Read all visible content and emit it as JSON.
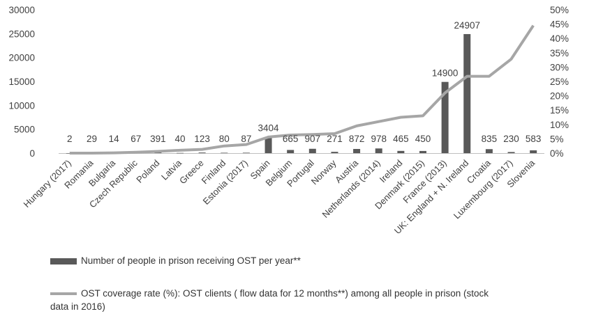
{
  "chart_data": {
    "type": "bar",
    "combo": "bar + line (dual axis)",
    "categories": [
      "Hungary (2017)",
      "Romania",
      "Bulgaria",
      "Czech Republic",
      "Poland",
      "Latvia",
      "Greece",
      "Finland",
      "Estonia (2017)",
      "Spain",
      "Belgium",
      "Portugal",
      "Norway",
      "Austria",
      "Netherlands (2014)",
      "Ireland",
      "Denmark (2015)",
      "France (2013)",
      "UK: England + N. Ireland",
      "Croatia",
      "Luxembourg (2017)",
      "Slovenia"
    ],
    "series": [
      {
        "name": "Number of people in prison receiving OST per year**",
        "kind": "bar",
        "axis": "left",
        "color": "#595959",
        "values": [
          2,
          29,
          14,
          67,
          391,
          40,
          123,
          80,
          87,
          3404,
          665,
          907,
          271,
          872,
          978,
          465,
          450,
          14900,
          24907,
          835,
          230,
          583
        ]
      },
      {
        "name": "OST coverage rate (%): OST clients ( flow data for 12 months**) among all people in prison (stock data in 2016)",
        "kind": "line",
        "axis": "right",
        "color": "#a6a6a6",
        "values": [
          0.0,
          0.0,
          0.1,
          0.3,
          0.6,
          1.0,
          1.3,
          2.5,
          3.0,
          5.6,
          6.3,
          6.5,
          6.8,
          9.5,
          11.0,
          12.5,
          13.0,
          21.0,
          26.8,
          26.8,
          32.8,
          44.5
        ]
      }
    ],
    "y_left": {
      "ylim": [
        0,
        30000
      ],
      "ticks": [
        "0",
        "5000",
        "10000",
        "15000",
        "20000",
        "25000",
        "30000"
      ]
    },
    "y_right": {
      "ylim": [
        0,
        50
      ],
      "ticks": [
        "0%",
        "5%",
        "10%",
        "15%",
        "20%",
        "25%",
        "30%",
        "35%",
        "40%",
        "45%",
        "50%"
      ]
    },
    "data_labels": [
      "2",
      "29",
      "14",
      "67",
      "391",
      "40",
      "123",
      "80",
      "87",
      "3404",
      "665",
      "907",
      "271",
      "872",
      "978",
      "465",
      "450",
      "14900",
      "24907",
      "835",
      "230",
      "583"
    ],
    "grid": false,
    "legend_position": "bottom"
  },
  "legend": {
    "bar_label": "Number of people in prison receiving OST per year**",
    "line_label_1": "OST coverage rate (%): OST clients ( flow data for 12 months**) among all people in prison (stock",
    "line_label_2": "data in 2016)"
  }
}
